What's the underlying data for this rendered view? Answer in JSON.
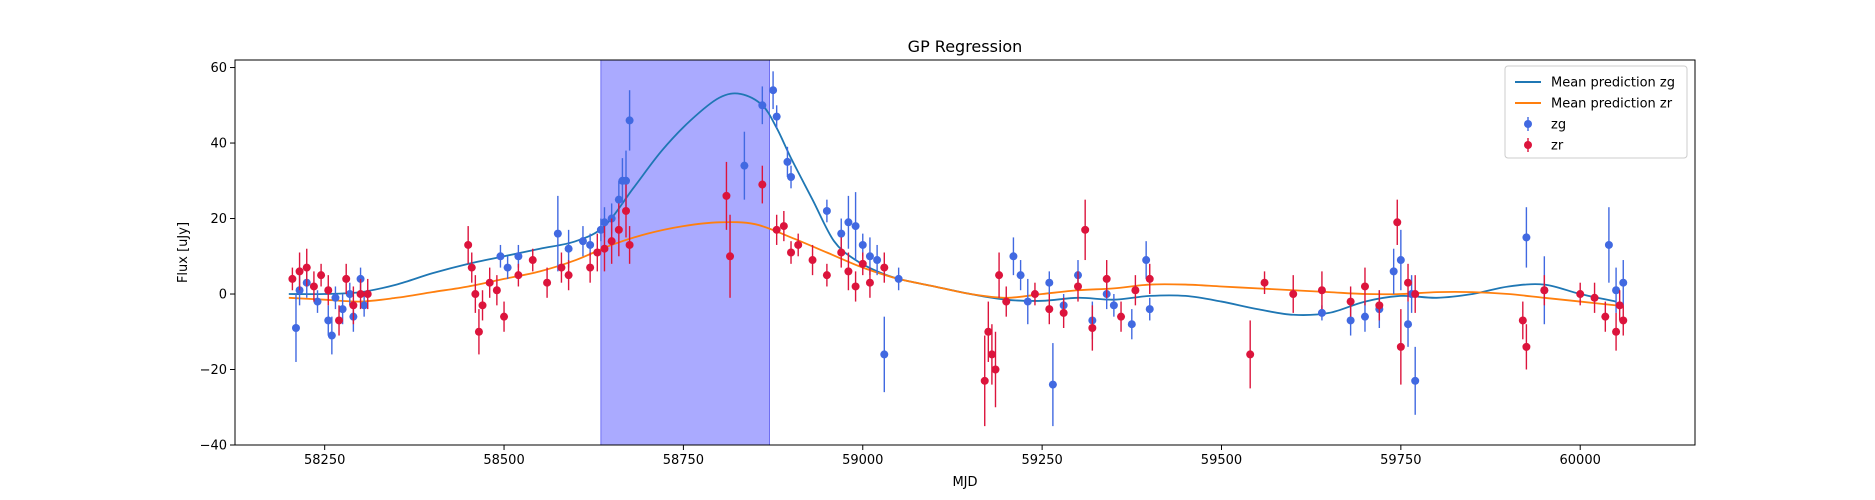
{
  "chart_data": {
    "type": "scatter",
    "title": "GP Regression",
    "xlabel": "MJD",
    "ylabel": "Flux [uJy]",
    "xlim": [
      58125,
      60160
    ],
    "ylim": [
      -40,
      62
    ],
    "xticks": [
      58250,
      58500,
      58750,
      59000,
      59250,
      59500,
      59750,
      60000
    ],
    "yticks": [
      -40,
      -20,
      0,
      20,
      40,
      60
    ],
    "grid": false,
    "legend_position": "top-right",
    "highlight_region": {
      "x0": 58635,
      "x1": 58870,
      "color": "#aaaaff"
    },
    "legend": [
      {
        "label": "Mean prediction zg",
        "kind": "line",
        "color": "#1f77b4"
      },
      {
        "label": "Mean prediction zr",
        "kind": "line",
        "color": "#ff7f0e"
      },
      {
        "label": "zg",
        "kind": "marker",
        "color": "#4169e1"
      },
      {
        "label": "zr",
        "kind": "marker",
        "color": "#dc143c"
      }
    ],
    "series": [
      {
        "name": "Mean prediction zg",
        "kind": "line",
        "color": "#1f77b4",
        "points": [
          [
            58200,
            0
          ],
          [
            58250,
            0
          ],
          [
            58300,
            0.5
          ],
          [
            58350,
            2.5
          ],
          [
            58400,
            5.5
          ],
          [
            58450,
            8
          ],
          [
            58500,
            10
          ],
          [
            58550,
            12
          ],
          [
            58600,
            14
          ],
          [
            58640,
            18
          ],
          [
            58680,
            28
          ],
          [
            58720,
            38
          ],
          [
            58760,
            46
          ],
          [
            58800,
            52
          ],
          [
            58830,
            53
          ],
          [
            58860,
            50
          ],
          [
            58880,
            44
          ],
          [
            58900,
            36
          ],
          [
            58930,
            25
          ],
          [
            58960,
            14
          ],
          [
            58990,
            9
          ],
          [
            59020,
            6
          ],
          [
            59050,
            4
          ],
          [
            59100,
            2
          ],
          [
            59150,
            0
          ],
          [
            59200,
            -1.5
          ],
          [
            59250,
            -1.8
          ],
          [
            59300,
            -1
          ],
          [
            59350,
            -1.5
          ],
          [
            59400,
            -0.5
          ],
          [
            59450,
            -0.5
          ],
          [
            59500,
            -2
          ],
          [
            59550,
            -4
          ],
          [
            59600,
            -5.5
          ],
          [
            59650,
            -5
          ],
          [
            59700,
            -2
          ],
          [
            59750,
            -0.5
          ],
          [
            59800,
            -1
          ],
          [
            59850,
            0
          ],
          [
            59900,
            2
          ],
          [
            59950,
            2.5
          ],
          [
            60000,
            0
          ],
          [
            60050,
            -2
          ]
        ]
      },
      {
        "name": "Mean prediction zr",
        "kind": "line",
        "color": "#ff7f0e",
        "points": [
          [
            58200,
            -1
          ],
          [
            58250,
            -1.5
          ],
          [
            58300,
            -2
          ],
          [
            58350,
            -1
          ],
          [
            58400,
            0.5
          ],
          [
            58450,
            2
          ],
          [
            58500,
            4
          ],
          [
            58550,
            6
          ],
          [
            58600,
            9
          ],
          [
            58650,
            13
          ],
          [
            58700,
            16
          ],
          [
            58750,
            18
          ],
          [
            58800,
            19
          ],
          [
            58850,
            18.5
          ],
          [
            58900,
            15
          ],
          [
            58950,
            11
          ],
          [
            59000,
            7
          ],
          [
            59050,
            4
          ],
          [
            59100,
            2
          ],
          [
            59150,
            0
          ],
          [
            59200,
            -1
          ],
          [
            59250,
            0
          ],
          [
            59300,
            1
          ],
          [
            59350,
            1.5
          ],
          [
            59400,
            2.5
          ],
          [
            59450,
            2.5
          ],
          [
            59500,
            2
          ],
          [
            59550,
            1.5
          ],
          [
            59600,
            1
          ],
          [
            59650,
            0.5
          ],
          [
            59700,
            0
          ],
          [
            59750,
            0
          ],
          [
            59800,
            0.5
          ],
          [
            59850,
            0.5
          ],
          [
            59900,
            0
          ],
          [
            59950,
            -1
          ],
          [
            60000,
            -2
          ],
          [
            60050,
            -3
          ]
        ]
      },
      {
        "name": "zg",
        "kind": "errorbar",
        "color": "#4169e1",
        "points": [
          [
            58210,
            -9,
            9
          ],
          [
            58215,
            1,
            4
          ],
          [
            58225,
            3,
            4
          ],
          [
            58240,
            -2,
            3
          ],
          [
            58255,
            -7,
            4
          ],
          [
            58260,
            -11,
            5
          ],
          [
            58265,
            -1,
            3
          ],
          [
            58275,
            -4,
            4
          ],
          [
            58285,
            0,
            3
          ],
          [
            58290,
            -6,
            4
          ],
          [
            58300,
            4,
            3
          ],
          [
            58305,
            -3,
            3
          ],
          [
            58495,
            10,
            3
          ],
          [
            58505,
            7,
            3
          ],
          [
            58520,
            10,
            3
          ],
          [
            58575,
            16,
            10
          ],
          [
            58590,
            12,
            5
          ],
          [
            58610,
            14,
            4
          ],
          [
            58620,
            13,
            3
          ],
          [
            58635,
            17,
            3
          ],
          [
            58640,
            19,
            4
          ],
          [
            58650,
            20,
            4
          ],
          [
            58660,
            25,
            5
          ],
          [
            58665,
            30,
            6
          ],
          [
            58670,
            30,
            8
          ],
          [
            58675,
            46,
            8
          ],
          [
            58835,
            34,
            9
          ],
          [
            58860,
            50,
            5
          ],
          [
            58875,
            54,
            5
          ],
          [
            58880,
            47,
            3
          ],
          [
            58895,
            35,
            4
          ],
          [
            58900,
            31,
            3
          ],
          [
            58950,
            22,
            3
          ],
          [
            58970,
            16,
            4
          ],
          [
            58980,
            19,
            7
          ],
          [
            58990,
            18,
            9
          ],
          [
            59000,
            13,
            3
          ],
          [
            59010,
            10,
            5
          ],
          [
            59020,
            9,
            4
          ],
          [
            59030,
            -16,
            10
          ],
          [
            59050,
            4,
            3
          ],
          [
            59210,
            10,
            5
          ],
          [
            59220,
            5,
            4
          ],
          [
            59230,
            -2,
            6
          ],
          [
            59260,
            3,
            3
          ],
          [
            59265,
            -24,
            11
          ],
          [
            59280,
            -3,
            3
          ],
          [
            59300,
            5,
            4
          ],
          [
            59320,
            -7,
            5
          ],
          [
            59340,
            0,
            4
          ],
          [
            59350,
            -3,
            3
          ],
          [
            59375,
            -8,
            4
          ],
          [
            59395,
            9,
            5
          ],
          [
            59400,
            -4,
            3
          ],
          [
            59640,
            -5,
            2
          ],
          [
            59680,
            -7,
            4
          ],
          [
            59700,
            -6,
            4
          ],
          [
            59720,
            -4,
            5
          ],
          [
            59740,
            6,
            6
          ],
          [
            59750,
            9,
            8
          ],
          [
            59760,
            -8,
            6
          ],
          [
            59765,
            0,
            5
          ],
          [
            59770,
            -23,
            9
          ],
          [
            59925,
            15,
            8
          ],
          [
            59950,
            1,
            9
          ],
          [
            60040,
            13,
            10
          ],
          [
            60050,
            1,
            6
          ],
          [
            60060,
            3,
            6
          ]
        ]
      },
      {
        "name": "zr",
        "kind": "errorbar",
        "color": "#dc143c",
        "points": [
          [
            58205,
            4,
            3
          ],
          [
            58215,
            6,
            5
          ],
          [
            58225,
            7,
            5
          ],
          [
            58235,
            2,
            4
          ],
          [
            58245,
            5,
            3
          ],
          [
            58255,
            1,
            4
          ],
          [
            58270,
            -7,
            4
          ],
          [
            58280,
            4,
            4
          ],
          [
            58290,
            -3,
            5
          ],
          [
            58300,
            0,
            4
          ],
          [
            58310,
            0,
            4
          ],
          [
            58450,
            13,
            5
          ],
          [
            58455,
            7,
            4
          ],
          [
            58460,
            0,
            5
          ],
          [
            58465,
            -10,
            6
          ],
          [
            58470,
            -3,
            4
          ],
          [
            58480,
            3,
            4
          ],
          [
            58490,
            1,
            4
          ],
          [
            58500,
            -6,
            4
          ],
          [
            58520,
            5,
            3
          ],
          [
            58540,
            9,
            3
          ],
          [
            58560,
            3,
            4
          ],
          [
            58580,
            7,
            4
          ],
          [
            58590,
            5,
            4
          ],
          [
            58620,
            7,
            4
          ],
          [
            58630,
            11,
            5
          ],
          [
            58640,
            12,
            6
          ],
          [
            58650,
            14,
            6
          ],
          [
            58660,
            17,
            7
          ],
          [
            58670,
            22,
            7
          ],
          [
            58675,
            13,
            5
          ],
          [
            58810,
            26,
            9
          ],
          [
            58815,
            10,
            11
          ],
          [
            58860,
            29,
            5
          ],
          [
            58880,
            17,
            4
          ],
          [
            58890,
            18,
            4
          ],
          [
            58900,
            11,
            3
          ],
          [
            58910,
            13,
            3
          ],
          [
            58930,
            9,
            4
          ],
          [
            58950,
            5,
            3
          ],
          [
            58970,
            11,
            4
          ],
          [
            58980,
            6,
            5
          ],
          [
            58990,
            2,
            4
          ],
          [
            59000,
            8,
            3
          ],
          [
            59010,
            3,
            4
          ],
          [
            59030,
            7,
            4
          ],
          [
            59170,
            -23,
            12
          ],
          [
            59175,
            -10,
            8
          ],
          [
            59180,
            -16,
            8
          ],
          [
            59185,
            -20,
            10
          ],
          [
            59190,
            5,
            6
          ],
          [
            59200,
            -2,
            4
          ],
          [
            59240,
            0,
            3
          ],
          [
            59260,
            -4,
            4
          ],
          [
            59280,
            -5,
            4
          ],
          [
            59300,
            2,
            4
          ],
          [
            59310,
            17,
            8
          ],
          [
            59320,
            -9,
            6
          ],
          [
            59340,
            4,
            5
          ],
          [
            59360,
            -6,
            4
          ],
          [
            59380,
            1,
            4
          ],
          [
            59400,
            4,
            4
          ],
          [
            59540,
            -16,
            9
          ],
          [
            59560,
            3,
            3
          ],
          [
            59600,
            0,
            5
          ],
          [
            59640,
            1,
            5
          ],
          [
            59680,
            -2,
            4
          ],
          [
            59700,
            2,
            5
          ],
          [
            59720,
            -3,
            4
          ],
          [
            59745,
            19,
            6
          ],
          [
            59750,
            -14,
            10
          ],
          [
            59760,
            3,
            5
          ],
          [
            59770,
            0,
            5
          ],
          [
            59920,
            -7,
            5
          ],
          [
            59925,
            -14,
            6
          ],
          [
            59950,
            1,
            4
          ],
          [
            60000,
            0,
            3
          ],
          [
            60020,
            -1,
            4
          ],
          [
            60035,
            -6,
            4
          ],
          [
            60050,
            -10,
            5
          ],
          [
            60055,
            -3,
            4
          ],
          [
            60060,
            -7,
            4
          ]
        ]
      }
    ]
  }
}
